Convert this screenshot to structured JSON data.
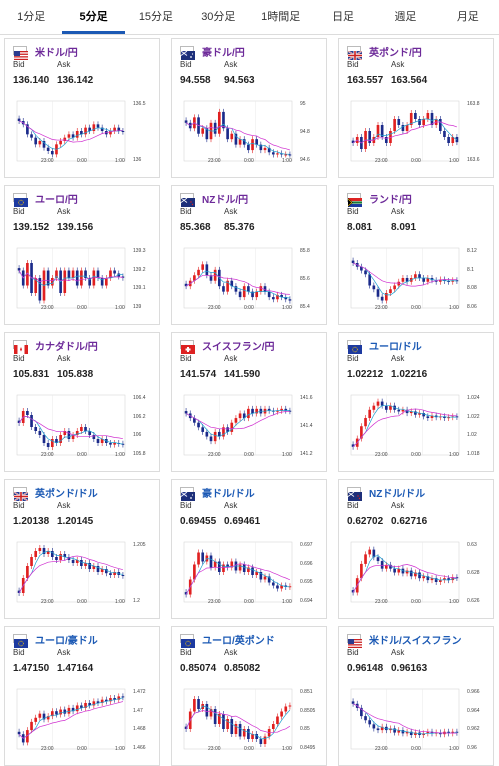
{
  "tabs": [
    "1分足",
    "5分足",
    "15分足",
    "30分足",
    "1時間足",
    "日足",
    "週足",
    "月足"
  ],
  "active_tab": 1,
  "labels": {
    "bid": "Bid",
    "ask": "Ask"
  },
  "colors": {
    "pair_jpy": "#6d2a99",
    "pair_other": "#1b59b4",
    "up": "#e02020",
    "down": "#1a2a8a",
    "ma_short": "#1fa0d0",
    "ma_long": "#d030d0"
  },
  "cards": [
    {
      "pair": "米ドル/円",
      "flag": "us",
      "bid": "136.140",
      "ask": "136.142",
      "yticks": [
        "136.5",
        "136"
      ],
      "xticks": [
        "23:00",
        "0:00",
        "1:00"
      ],
      "chart_data": {
        "type": "candlestick",
        "closes": [
          136.3,
          136.25,
          136.1,
          136.05,
          135.95,
          136.0,
          135.9,
          135.85,
          135.8,
          135.95,
          136.0,
          136.05,
          136.1,
          136.05,
          136.15,
          136.1,
          136.2,
          136.15,
          136.25,
          136.2,
          136.15,
          136.1,
          136.15,
          136.2,
          136.15,
          136.14
        ],
        "ylim": [
          135.7,
          136.6
        ]
      }
    },
    {
      "pair": "豪ドル/円",
      "flag": "au",
      "bid": "94.558",
      "ask": "94.563",
      "yticks": [
        "95",
        "94.8",
        "94.6"
      ],
      "xticks": [
        "23:00",
        "0:00",
        "1:00"
      ],
      "chart_data": {
        "type": "candlestick",
        "closes": [
          94.85,
          94.8,
          94.9,
          94.75,
          94.8,
          94.7,
          94.85,
          94.75,
          94.95,
          94.8,
          94.7,
          94.75,
          94.65,
          94.7,
          94.65,
          94.6,
          94.7,
          94.65,
          94.6,
          94.62,
          94.58,
          94.56,
          94.57,
          94.56,
          94.56,
          94.558
        ],
        "ylim": [
          94.5,
          95.05
        ]
      }
    },
    {
      "pair": "英ポンド/円",
      "flag": "gb",
      "bid": "163.557",
      "ask": "163.564",
      "yticks": [
        "163.8",
        "163.6"
      ],
      "xticks": [
        "23:00",
        "0:00",
        "1:00"
      ],
      "chart_data": {
        "type": "candlestick",
        "closes": [
          163.55,
          163.6,
          163.5,
          163.65,
          163.55,
          163.6,
          163.7,
          163.6,
          163.55,
          163.65,
          163.75,
          163.7,
          163.65,
          163.7,
          163.8,
          163.75,
          163.7,
          163.75,
          163.8,
          163.7,
          163.75,
          163.65,
          163.6,
          163.55,
          163.6,
          163.557
        ],
        "ylim": [
          163.4,
          163.9
        ]
      }
    },
    {
      "pair": "ユーロ/円",
      "flag": "eu",
      "bid": "139.152",
      "ask": "139.156",
      "yticks": [
        "139.3",
        "139.2",
        "139.1",
        "139"
      ],
      "xticks": [
        "23:00",
        "0:00",
        "1:00"
      ],
      "chart_data": {
        "type": "candlestick",
        "closes": [
          139.2,
          139.1,
          139.25,
          139.05,
          139.15,
          139.0,
          139.2,
          139.1,
          139.15,
          139.2,
          139.05,
          139.2,
          139.15,
          139.2,
          139.1,
          139.2,
          139.15,
          139.1,
          139.2,
          139.15,
          139.1,
          139.15,
          139.2,
          139.18,
          139.16,
          139.152
        ],
        "ylim": [
          138.95,
          139.35
        ]
      }
    },
    {
      "pair": "NZドル/円",
      "flag": "nz",
      "bid": "85.368",
      "ask": "85.376",
      "yticks": [
        "85.8",
        "85.6",
        "85.4"
      ],
      "xticks": [
        "23:00",
        "0:00",
        "1:00"
      ],
      "chart_data": {
        "type": "candlestick",
        "closes": [
          85.5,
          85.55,
          85.6,
          85.65,
          85.7,
          85.6,
          85.55,
          85.65,
          85.5,
          85.45,
          85.55,
          85.5,
          85.45,
          85.4,
          85.5,
          85.45,
          85.4,
          85.45,
          85.5,
          85.45,
          85.4,
          85.38,
          85.42,
          85.4,
          85.38,
          85.368
        ],
        "ylim": [
          85.3,
          85.85
        ]
      }
    },
    {
      "pair": "ランド/円",
      "flag": "za",
      "bid": "8.081",
      "ask": "8.091",
      "yticks": [
        "8.12",
        "8.1",
        "8.08",
        "8.06"
      ],
      "xticks": [
        "23:00",
        "0:00",
        "1:00"
      ],
      "chart_data": {
        "type": "candlestick",
        "closes": [
          8.105,
          8.1,
          8.095,
          8.09,
          8.075,
          8.07,
          8.06,
          8.055,
          8.065,
          8.07,
          8.075,
          8.08,
          8.085,
          8.08,
          8.085,
          8.09,
          8.085,
          8.08,
          8.085,
          8.082,
          8.08,
          8.083,
          8.081,
          8.08,
          8.082,
          8.081
        ],
        "ylim": [
          8.045,
          8.125
        ]
      }
    },
    {
      "pair": "カナダドル/円",
      "flag": "ca",
      "bid": "105.831",
      "ask": "105.838",
      "yticks": [
        "106.4",
        "106.2",
        "106",
        "105.8"
      ],
      "xticks": [
        "23:00",
        "0:00",
        "1:00"
      ],
      "chart_data": {
        "type": "candlestick",
        "closes": [
          106.1,
          106.25,
          106.2,
          106.05,
          106.0,
          105.95,
          105.85,
          105.8,
          105.9,
          105.85,
          105.95,
          106.0,
          105.9,
          105.95,
          106.0,
          106.05,
          106.0,
          105.95,
          105.9,
          105.85,
          105.9,
          105.85,
          105.83,
          105.85,
          105.84,
          105.831
        ],
        "ylim": [
          105.7,
          106.45
        ]
      }
    },
    {
      "pair": "スイスフラン/円",
      "flag": "ch",
      "bid": "141.574",
      "ask": "141.590",
      "yticks": [
        "141.6",
        "141.4",
        "141.2"
      ],
      "xticks": [
        "23:00",
        "0:00",
        "1:00"
      ],
      "chart_data": {
        "type": "candlestick",
        "closes": [
          141.55,
          141.5,
          141.45,
          141.4,
          141.35,
          141.3,
          141.25,
          141.35,
          141.3,
          141.4,
          141.35,
          141.45,
          141.5,
          141.55,
          141.5,
          141.6,
          141.55,
          141.6,
          141.55,
          141.6,
          141.58,
          141.57,
          141.58,
          141.6,
          141.58,
          141.574
        ],
        "ylim": [
          141.1,
          141.75
        ]
      }
    },
    {
      "pair": "ユーロ/ドル",
      "flag": "eu",
      "bid": "1.02212",
      "ask": "1.02216",
      "yticks": [
        "1.024",
        "1.022",
        "1.02",
        "1.018"
      ],
      "xticks": [
        "23:00",
        "0:00",
        "1:00"
      ],
      "chart_data": {
        "type": "candlestick",
        "closes": [
          1.0185,
          1.0195,
          1.021,
          1.022,
          1.023,
          1.0235,
          1.024,
          1.0235,
          1.023,
          1.0235,
          1.023,
          1.0228,
          1.023,
          1.0226,
          1.0228,
          1.0224,
          1.0226,
          1.0222,
          1.022,
          1.0223,
          1.0221,
          1.0222,
          1.022,
          1.0221,
          1.0222,
          1.02212
        ],
        "ylim": [
          1.0175,
          1.0248
        ]
      }
    },
    {
      "pair": "英ポンド/ドル",
      "flag": "gb",
      "bid": "1.20138",
      "ask": "1.20145",
      "yticks": [
        "1.205",
        "1.2"
      ],
      "xticks": [
        "23:00",
        "0:00",
        "1:00"
      ],
      "chart_data": {
        "type": "candlestick",
        "closes": [
          1.1985,
          1.201,
          1.203,
          1.2045,
          1.2055,
          1.206,
          1.205,
          1.2055,
          1.2045,
          1.204,
          1.205,
          1.2045,
          1.204,
          1.2035,
          1.204,
          1.203,
          1.2035,
          1.2025,
          1.203,
          1.202,
          1.2025,
          1.2018,
          1.2015,
          1.202,
          1.2015,
          1.20138
        ],
        "ylim": [
          1.197,
          1.207
        ]
      }
    },
    {
      "pair": "豪ドル/ドル",
      "flag": "au",
      "bid": "0.69455",
      "ask": "0.69461",
      "yticks": [
        "0.697",
        "0.696",
        "0.695",
        "0.694"
      ],
      "xticks": [
        "23:00",
        "0:00",
        "1:00"
      ],
      "chart_data": {
        "type": "candlestick",
        "closes": [
          0.694,
          0.695,
          0.696,
          0.6968,
          0.6962,
          0.6966,
          0.6958,
          0.6962,
          0.6955,
          0.696,
          0.6958,
          0.6962,
          0.6956,
          0.696,
          0.6955,
          0.6958,
          0.6953,
          0.6955,
          0.695,
          0.6952,
          0.6948,
          0.6946,
          0.6944,
          0.6946,
          0.6945,
          0.69455
        ],
        "ylim": [
          0.6935,
          0.6975
        ]
      }
    },
    {
      "pair": "NZドル/ドル",
      "flag": "nz",
      "bid": "0.62702",
      "ask": "0.62716",
      "yticks": [
        "0.63",
        "0.628",
        "0.626"
      ],
      "xticks": [
        "23:00",
        "0:00",
        "1:00"
      ],
      "chart_data": {
        "type": "candlestick",
        "closes": [
          0.6255,
          0.627,
          0.6285,
          0.6295,
          0.63,
          0.6292,
          0.6288,
          0.628,
          0.6284,
          0.628,
          0.6276,
          0.628,
          0.6275,
          0.6278,
          0.6272,
          0.6276,
          0.627,
          0.6272,
          0.6268,
          0.627,
          0.6266,
          0.6268,
          0.627,
          0.6268,
          0.6271,
          0.62702
        ],
        "ylim": [
          0.6245,
          0.6308
        ]
      }
    },
    {
      "pair": "ユーロ/豪ドル",
      "flag": "eu",
      "bid": "1.47150",
      "ask": "1.47164",
      "yticks": [
        "1.472",
        "1.47",
        "1.468",
        "1.466"
      ],
      "xticks": [
        "23:00",
        "0:00",
        "1:00"
      ],
      "chart_data": {
        "type": "candlestick",
        "closes": [
          1.467,
          1.466,
          1.4675,
          1.4685,
          1.469,
          1.4695,
          1.4688,
          1.4692,
          1.4698,
          1.4694,
          1.47,
          1.4695,
          1.4702,
          1.4698,
          1.4705,
          1.4702,
          1.4708,
          1.4705,
          1.471,
          1.4708,
          1.4712,
          1.471,
          1.4714,
          1.4712,
          1.4716,
          1.4715
        ],
        "ylim": [
          1.4652,
          1.4725
        ]
      }
    },
    {
      "pair": "ユーロ/英ポンド",
      "flag": "eu",
      "bid": "0.85074",
      "ask": "0.85082",
      "yticks": [
        "0.851",
        "0.8505",
        "0.85",
        "0.8495"
      ],
      "xticks": [
        "23:00",
        "0:00",
        "1:00"
      ],
      "chart_data": {
        "type": "candlestick",
        "closes": [
          0.8498,
          0.8505,
          0.851,
          0.8506,
          0.8508,
          0.8503,
          0.8506,
          0.85,
          0.8504,
          0.8498,
          0.8502,
          0.8496,
          0.85,
          0.8495,
          0.8498,
          0.8494,
          0.8496,
          0.8494,
          0.8492,
          0.8495,
          0.8498,
          0.85,
          0.8503,
          0.8505,
          0.8507,
          0.85074
        ],
        "ylim": [
          0.849,
          0.8514
        ]
      }
    },
    {
      "pair": "米ドル/スイスフラン",
      "flag": "us",
      "bid": "0.96148",
      "ask": "0.96163",
      "yticks": [
        "0.966",
        "0.964",
        "0.962",
        "0.96"
      ],
      "xticks": [
        "23:00",
        "0:00",
        "1:00"
      ],
      "chart_data": {
        "type": "candlestick",
        "closes": [
          0.965,
          0.9645,
          0.9635,
          0.963,
          0.9625,
          0.962,
          0.9618,
          0.9622,
          0.9618,
          0.962,
          0.9615,
          0.9618,
          0.9614,
          0.9616,
          0.9612,
          0.9615,
          0.9612,
          0.9614,
          0.9616,
          0.9614,
          0.9615,
          0.9613,
          0.9616,
          0.9614,
          0.9616,
          0.96148
        ],
        "ylim": [
          0.9595,
          0.9668
        ]
      }
    }
  ]
}
